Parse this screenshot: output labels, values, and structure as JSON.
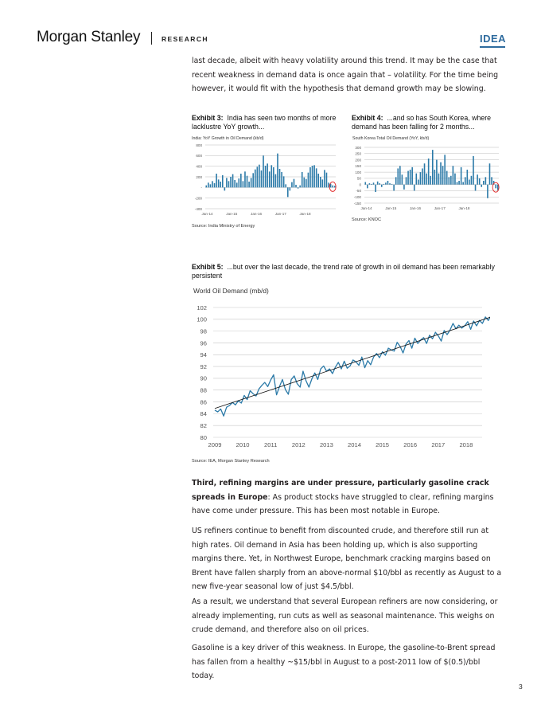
{
  "header": {
    "logo": "Morgan Stanley",
    "section": "RESEARCH",
    "badge": "IDEA"
  },
  "intro_paragraph": "last decade, albeit with heavy volatility around this trend. It may be the case that recent weakness in demand data is once again that – volatility. For the time being however, it would fit with the hypothesis that demand growth may be slowing.",
  "exhibit3": {
    "label": "Exhibit 3:",
    "title": "India has seen two months of more lacklustre YoY growth...",
    "chart_title": "India: YoY Growth in Oil Demand (kb/d)",
    "source": "Source: India Ministry of Energy"
  },
  "exhibit4": {
    "label": "Exhibit 4:",
    "title": "...and so has South Korea, where demand has been falling for 2 months...",
    "chart_title": "South Korea Total Oil Demand (YoY, kb/d)",
    "source": "Source: KNOC"
  },
  "exhibit5": {
    "label": "Exhibit 5:",
    "title": "...but over the last decade, the trend rate of growth in oil demand has been remarkably persistent",
    "chart_title": "World Oil Demand (mb/d)",
    "source": "Source: IEA, Morgan Stanley Research"
  },
  "paragraphs": {
    "p1_bold": "Third, refining margins are under pressure, particularly gasoline crack spreads in Europe",
    "p1_rest": ": As product stocks have struggled to clear, refining margins have come under pressure. This has been most notable in Europe.",
    "p2": "US refiners continue to benefit from discounted crude, and therefore still run at high rates. Oil demand in Asia has been holding up, which is also supporting margins there. Yet, in Northwest Europe, benchmark cracking margins based on Brent have fallen sharply from an above-normal $10/bbl as recently as August to a new five-year seasonal low of just $4.5/bbl.",
    "p3": "As a result, we understand that several European refiners are now considering, or already implementing, run cuts as well as seasonal maintenance. This weighs on crude demand, and therefore also on oil prices.",
    "p4": "Gasoline is a key driver of this weakness. In Europe, the gasoline-to-Brent spread has fallen from a healthy ~$15/bbl in August to a post-2011 low of $(0.5)/bbl today."
  },
  "page_number": "3",
  "colors": {
    "series": "#2b7aa8",
    "trend": "#111111",
    "grid": "#bdbdbd",
    "highlight": "#e02020",
    "brand": "#2e6b9e"
  },
  "chart_data": [
    {
      "type": "bar",
      "title": "India: YoY Growth in Oil Demand (kb/d)",
      "ylim": [
        -400,
        800
      ],
      "yticks": [
        "800",
        "600",
        "400",
        "200",
        "-",
        "-200",
        "-400"
      ],
      "xticks": [
        "Jan-14",
        "Jan-15",
        "Jan-16",
        "Jan-17",
        "Jan-18"
      ],
      "values": [
        40,
        90,
        60,
        120,
        80,
        260,
        150,
        110,
        230,
        -60,
        180,
        120,
        200,
        250,
        140,
        90,
        170,
        260,
        120,
        300,
        220,
        110,
        180,
        270,
        340,
        390,
        430,
        320,
        600,
        410,
        450,
        300,
        420,
        380,
        250,
        640,
        350,
        290,
        210,
        60,
        -180,
        -60,
        100,
        160,
        50,
        -20,
        40,
        290,
        190,
        160,
        280,
        380,
        410,
        420,
        360,
        260,
        200,
        150,
        330,
        280,
        90,
        70,
        40,
        30
      ]
    },
    {
      "type": "bar",
      "title": "South Korea Total Oil Demand (YoY, kb/d)",
      "ylim": [
        -150,
        300
      ],
      "yticks": [
        "300",
        "250",
        "200",
        "150",
        "100",
        "50",
        "0",
        "-50",
        "-100",
        "-150"
      ],
      "xticks": [
        "Jan-14",
        "Jan-15",
        "Jan-16",
        "Jan-17",
        "Jan-18"
      ],
      "values": [
        20,
        -30,
        10,
        5,
        15,
        -60,
        25,
        10,
        -20,
        5,
        15,
        30,
        10,
        5,
        -50,
        60,
        130,
        150,
        80,
        -40,
        60,
        110,
        120,
        140,
        -50,
        90,
        40,
        100,
        130,
        170,
        90,
        210,
        70,
        280,
        120,
        200,
        90,
        180,
        150,
        240,
        110,
        60,
        70,
        150,
        90,
        20,
        30,
        140,
        20,
        60,
        120,
        40,
        70,
        230,
        -50,
        80,
        50,
        -20,
        30,
        60,
        -110,
        170,
        60,
        30,
        -30,
        -45
      ]
    },
    {
      "type": "line",
      "title": "World Oil Demand (mb/d)",
      "ylim": [
        80,
        102
      ],
      "yticks": [
        "102",
        "100",
        "98",
        "96",
        "94",
        "92",
        "90",
        "88",
        "86",
        "84",
        "82",
        "80"
      ],
      "xticks": [
        "2009",
        "2010",
        "2011",
        "2012",
        "2013",
        "2014",
        "2015",
        "2016",
        "2017",
        "2018"
      ],
      "series": [
        {
          "values": [
            84.6,
            84.3,
            84.8,
            83.6,
            85.1,
            85.4,
            85.9,
            85.5,
            86.2,
            85.8,
            87.1,
            86.4,
            87.9,
            87.4,
            87.0,
            88.2,
            88.8,
            89.3,
            88.6,
            89.7,
            90.6,
            87.2,
            88.6,
            89.8,
            88.1,
            87.3,
            89.8,
            90.4,
            89.1,
            88.5,
            91.2,
            89.6,
            88.5,
            89.9,
            90.9,
            89.8,
            91.6,
            92.1,
            91.2,
            91.6,
            90.8,
            91.9,
            92.7,
            91.6,
            92.9,
            91.7,
            92.1,
            93.1,
            92.8,
            92.2,
            93.6,
            91.8,
            93.0,
            92.3,
            93.6,
            94.2,
            93.5,
            94.5,
            93.9,
            95.1,
            94.8,
            94.6,
            96.1,
            95.4,
            94.3,
            95.8,
            96.4,
            95.1,
            96.8,
            95.9,
            96.5,
            96.9,
            95.9,
            97.3,
            96.7,
            97.8,
            97.2,
            96.3,
            98.1,
            97.4,
            98.2,
            99.3,
            98.4,
            99.0,
            98.5,
            98.9,
            99.6,
            98.3,
            99.7,
            98.9,
            99.8,
            99.3,
            100.4,
            99.8,
            100.7
          ]
        }
      ],
      "trend": [
        84.9,
        100.4
      ]
    }
  ]
}
